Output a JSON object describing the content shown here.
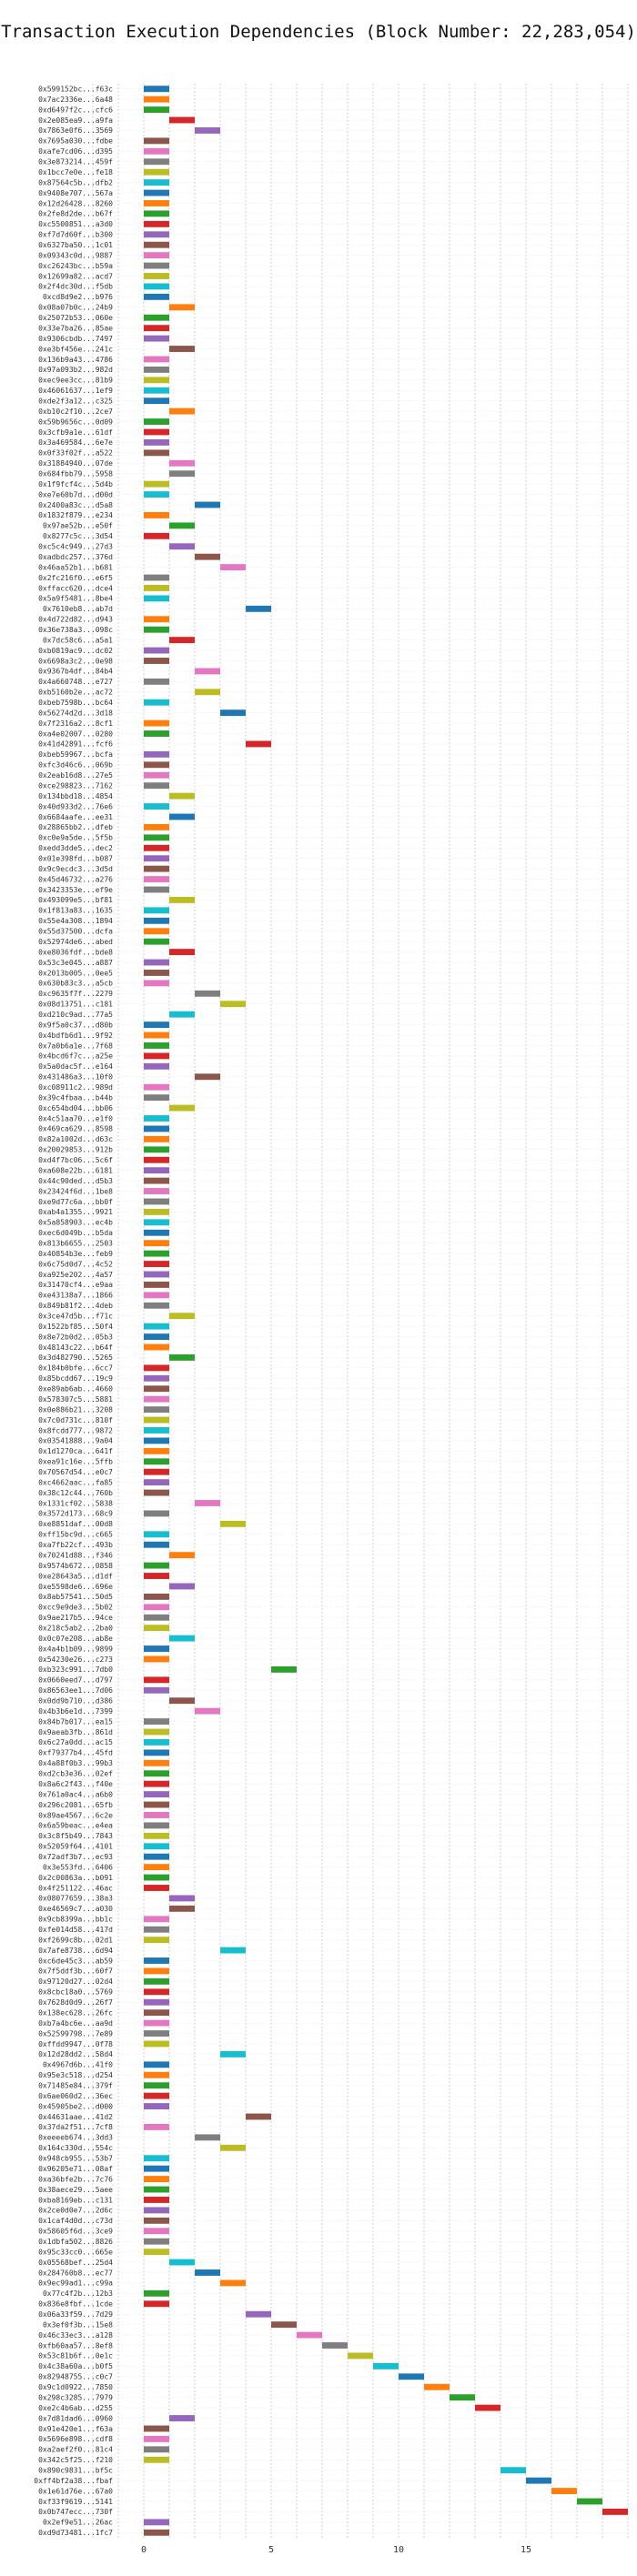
{
  "chart_data": {
    "type": "bar",
    "orientation": "horizontal",
    "title": "Transaction Execution Dependencies (Block Number: 22,283,054)",
    "xlabel": "",
    "ylabel": "",
    "xlim": [
      -2,
      20
    ],
    "xticks": [
      0,
      5,
      10,
      15,
      20
    ],
    "grid": "vertical dotted",
    "palette": [
      "#1f77b4",
      "#ff7f0e",
      "#2ca02c",
      "#d62728",
      "#9467bd",
      "#8c564b",
      "#e377c2",
      "#7f7f7f",
      "#bcbd22",
      "#17becf"
    ],
    "bars": [
      [
        "0x599152bc...f63c",
        0
      ],
      [
        "0x7ac2336e...6a48",
        0
      ],
      [
        "0xd6497f2c...cfc6",
        0
      ],
      [
        "0x2e085ea9...a9fa",
        1
      ],
      [
        "0x7863e0f6...3569",
        2
      ],
      [
        "0x7695a030...fdbe",
        0
      ],
      [
        "0xafe7cd06...d395",
        0
      ],
      [
        "0x3e873214...459f",
        0
      ],
      [
        "0x1bcc7e0e...fe18",
        0
      ],
      [
        "0x87564c5b...dfb2",
        0
      ],
      [
        "0x9408e707...567a",
        0
      ],
      [
        "0x12d26428...8260",
        0
      ],
      [
        "0x2fe8d2de...b67f",
        0
      ],
      [
        "0xc5500851...a3d0",
        0
      ],
      [
        "0xf7d7d60f...b300",
        0
      ],
      [
        "0x6327ba50...1c01",
        0
      ],
      [
        "0x09343c0d...9887",
        0
      ],
      [
        "0xc26243bc...b59a",
        0
      ],
      [
        "0x12699a82...acd7",
        0
      ],
      [
        "0x2f4dc30d...f5db",
        0
      ],
      [
        "0xcd8d9e2...b976",
        0
      ],
      [
        "0x08a07b0c...24b9",
        1
      ],
      [
        "0x25072b53...060e",
        0
      ],
      [
        "0x33e7ba26...85ae",
        0
      ],
      [
        "0x9306cbdb...7497",
        0
      ],
      [
        "0xe3bf456e...241c",
        1
      ],
      [
        "0x136b9a43...4786",
        0
      ],
      [
        "0x97a093b2...982d",
        0
      ],
      [
        "0xec9ee3cc...81b9",
        0
      ],
      [
        "0x46061637...1ef9",
        0
      ],
      [
        "0xde2f3a12...c325",
        0
      ],
      [
        "0xb10c2f10...2ce7",
        1
      ],
      [
        "0x59b9656c...0d09",
        0
      ],
      [
        "0x3cfb9a1e...61df",
        0
      ],
      [
        "0x3a469584...6e7e",
        0
      ],
      [
        "0x0f33f02f...a522",
        0
      ],
      [
        "0x31884940...07de",
        1
      ],
      [
        "0x684fbb79...5958",
        1
      ],
      [
        "0x1f9fcf4c...5d4b",
        0
      ],
      [
        "0xe7e60b7d...d00d",
        0
      ],
      [
        "0x2400a83c...d5a8",
        2
      ],
      [
        "0x1832f879...e234",
        0
      ],
      [
        "0x97ae52b...e50f",
        1
      ],
      [
        "0x8277c5c...3d54",
        0
      ],
      [
        "0xc5c4c949...27d3",
        1
      ],
      [
        "0xadbdc257...376d",
        2
      ],
      [
        "0x46aa52b1...b681",
        3
      ],
      [
        "0x2fc216f0...e6f5",
        0
      ],
      [
        "0xffacc620...dce4",
        0
      ],
      [
        "0x5a9f5481...8be4",
        0
      ],
      [
        "0x7610eb8...ab7d",
        4
      ],
      [
        "0x4d722d82...d943",
        0
      ],
      [
        "0x36e738a3...098c",
        0
      ],
      [
        "0x7dc58c6...a5a1",
        1
      ],
      [
        "0xb0819ac9...dc02",
        0
      ],
      [
        "0x6698a3c2...0e98",
        0
      ],
      [
        "0x9367b4df...84b4",
        2
      ],
      [
        "0x4a660748...e727",
        0
      ],
      [
        "0xb5160b2e...ac72",
        2
      ],
      [
        "0xbeb7598b...bc64",
        0
      ],
      [
        "0x56274d2d...3d18",
        3
      ],
      [
        "0x7f2316a2...8cf1",
        0
      ],
      [
        "0xa4e02007...0280",
        0
      ],
      [
        "0x41d42891...fcf6",
        4
      ],
      [
        "0xbeb59967...bcfa",
        0
      ],
      [
        "0xfc3d46c6...069b",
        0
      ],
      [
        "0x2eab16d8...27e5",
        0
      ],
      [
        "0xce298823...7162",
        0
      ],
      [
        "0x134bbd18...4854",
        1
      ],
      [
        "0x40d933d2...76e6",
        0
      ],
      [
        "0x6684aafe...ee31",
        1
      ],
      [
        "0x28865bb2...dfeb",
        0
      ],
      [
        "0xc0e9a5de...5f5b",
        0
      ],
      [
        "0xedd3dde5...dec2",
        0
      ],
      [
        "0x01e398fd...b087",
        0
      ],
      [
        "0x9c9ecdc3...3d5d",
        0
      ],
      [
        "0x45d46732...a276",
        0
      ],
      [
        "0x3423353e...ef9e",
        0
      ],
      [
        "0x493099e5...bf81",
        1
      ],
      [
        "0x1f813a83...1635",
        0
      ],
      [
        "0x55e4a308...1894",
        0
      ],
      [
        "0x55d37500...dcfa",
        0
      ],
      [
        "0x52974de6...abed",
        0
      ],
      [
        "0xe8036fdf...bde8",
        1
      ],
      [
        "0x53c3e045...a887",
        0
      ],
      [
        "0x2013b005...0ee5",
        0
      ],
      [
        "0x630b83c3...a5cb",
        0
      ],
      [
        "0xc9635f7f...2279",
        2
      ],
      [
        "0x08d13751...c181",
        3
      ],
      [
        "0xd210c9ad...77a5",
        1
      ],
      [
        "0x9f5a0c37...d80b",
        0
      ],
      [
        "0x4bdfb6d1...9f92",
        0
      ],
      [
        "0x7a0b6a1e...7f68",
        0
      ],
      [
        "0x4bcd6f7c...a25e",
        0
      ],
      [
        "0x5a0dac5f...e164",
        0
      ],
      [
        "0x431486a3...10f0",
        2
      ],
      [
        "0xc08911c2...989d",
        0
      ],
      [
        "0x39c4fbaa...b44b",
        0
      ],
      [
        "0xc654bd04...bb06",
        1
      ],
      [
        "0x4c51aa70...e1f0",
        0
      ],
      [
        "0x469ca629...8598",
        0
      ],
      [
        "0x82a1002d...d63c",
        0
      ],
      [
        "0x20029853...912b",
        0
      ],
      [
        "0xd4f7bc06...5c6f",
        0
      ],
      [
        "0xa608e22b...6181",
        0
      ],
      [
        "0x44c90ded...d5b3",
        0
      ],
      [
        "0x23424f6d...1be8",
        0
      ],
      [
        "0xe9d77c6a...bb0f",
        0
      ],
      [
        "0xab4a1355...9921",
        0
      ],
      [
        "0x5a858903...ec4b",
        0
      ],
      [
        "0xec6d049b...b5da",
        0
      ],
      [
        "0x813b6655...2503",
        0
      ],
      [
        "0x40854b3e...feb9",
        0
      ],
      [
        "0x6c75d0d7...4c52",
        0
      ],
      [
        "0xa925e202...4a57",
        0
      ],
      [
        "0x31470cf4...e9aa",
        0
      ],
      [
        "0xe43138a7...1866",
        0
      ],
      [
        "0x849b81f2...4deb",
        0
      ],
      [
        "0x3ce47d5b...f71c",
        1
      ],
      [
        "0x1522bf85...50f4",
        0
      ],
      [
        "0x8e72b0d2...05b3",
        0
      ],
      [
        "0x48143c22...b64f",
        0
      ],
      [
        "0x3d482790...5265",
        1
      ],
      [
        "0x184b0bfe...6cc7",
        0
      ],
      [
        "0x85bcdd67...19c9",
        0
      ],
      [
        "0xe89ab6ab...4660",
        0
      ],
      [
        "0x578307c5...5881",
        0
      ],
      [
        "0x0e886b21...3208",
        0
      ],
      [
        "0x7c0d731c...810f",
        0
      ],
      [
        "0x8fcdd777...9872",
        0
      ],
      [
        "0x03541888...9a04",
        0
      ],
      [
        "0x1d1270ca...641f",
        0
      ],
      [
        "0xea91c16e...5ffb",
        0
      ],
      [
        "0x70567d54...e0c7",
        0
      ],
      [
        "0xc4662aac...fa85",
        0
      ],
      [
        "0x38c12c44...760b",
        0
      ],
      [
        "0x1331cf02...5838",
        2
      ],
      [
        "0x3572d173...68c9",
        0
      ],
      [
        "0xe8851daf...00d8",
        3
      ],
      [
        "0xff15bc9d...c665",
        0
      ],
      [
        "0xa7fb22cf...493b",
        0
      ],
      [
        "0x70241d88...f346",
        1
      ],
      [
        "0x9574b672...0858",
        0
      ],
      [
        "0xe28643a5...d1df",
        0
      ],
      [
        "0xe5598de6...696e",
        1
      ],
      [
        "0x8ab57541...50d5",
        0
      ],
      [
        "0xcc9e9de3...5b02",
        0
      ],
      [
        "0x9ae217b5...94ce",
        0
      ],
      [
        "0x218c5ab2...2ba0",
        0
      ],
      [
        "0x0c07e208...ab8e",
        1
      ],
      [
        "0x4a4b1b09...9899",
        0
      ],
      [
        "0x54230e26...c273",
        0
      ],
      [
        "0xb323c991...7db0",
        5
      ],
      [
        "0x0660eed7...d797",
        0
      ],
      [
        "0x86563ee1...7d06",
        0
      ],
      [
        "0x0dd9b710...d386",
        1
      ],
      [
        "0x4b3b6e1d...7399",
        2
      ],
      [
        "0x84b7b017...ea15",
        0
      ],
      [
        "0x9aeab3fb...861d",
        0
      ],
      [
        "0x6c27a0dd...ac15",
        0
      ],
      [
        "0xf79377b4...45fd",
        0
      ],
      [
        "0x4a88f0b3...99b3",
        0
      ],
      [
        "0xd2cb3e36...02ef",
        0
      ],
      [
        "0x8a6c2f43...f40e",
        0
      ],
      [
        "0x761a0ac4...a6b0",
        0
      ],
      [
        "0x296c2081...65fb",
        0
      ],
      [
        "0x89ae4567...6c2e",
        0
      ],
      [
        "0x6a59beac...e4ea",
        0
      ],
      [
        "0x3c8f5b49...7843",
        0
      ],
      [
        "0x52059f64...4101",
        0
      ],
      [
        "0x72adf3b7...ec93",
        0
      ],
      [
        "0x3e553fd...6406",
        0
      ],
      [
        "0x2c00863a...b091",
        0
      ],
      [
        "0x4f251122...46ac",
        0
      ],
      [
        "0x08077659...38a3",
        1
      ],
      [
        "0xe46569c7...a030",
        1
      ],
      [
        "0x9cb8399a...bb1c",
        0
      ],
      [
        "0xfe014d58...417d",
        0
      ],
      [
        "0xf2699c8b...02d1",
        0
      ],
      [
        "0x7afe8738...6d94",
        3
      ],
      [
        "0xc6de45c3...ab59",
        0
      ],
      [
        "0x7f5ddf3b...60f7",
        0
      ],
      [
        "0x97120d27...02d4",
        0
      ],
      [
        "0x8cbc18a0...5769",
        0
      ],
      [
        "0x7628d0d9...26f7",
        0
      ],
      [
        "0x138ec628...26fc",
        0
      ],
      [
        "0xb7a4bc6e...aa9d",
        0
      ],
      [
        "0x52599798...7e89",
        0
      ],
      [
        "0xffdd9947...0f78",
        0
      ],
      [
        "0x12d28dd2...58d4",
        3
      ],
      [
        "0x4967d6b...41f0",
        0
      ],
      [
        "0x95e3c518...d254",
        0
      ],
      [
        "0x71485e84...379f",
        0
      ],
      [
        "0x6ae060d2...36ec",
        0
      ],
      [
        "0x45905be2...d000",
        0
      ],
      [
        "0x44631aae...41d2",
        4
      ],
      [
        "0x37da2f51...7cf8",
        0
      ],
      [
        "0xeeeeb674...3dd3",
        2
      ],
      [
        "0x164c330d...554c",
        3
      ],
      [
        "0x948cb955...53b7",
        0
      ],
      [
        "0x96205e71...08af",
        0
      ],
      [
        "0xa36bfe2b...7c76",
        0
      ],
      [
        "0x38aece29...5aee",
        0
      ],
      [
        "0xba8169eb...c131",
        0
      ],
      [
        "0x2ce0d0e7...2d6c",
        0
      ],
      [
        "0x1caf4d0d...c73d",
        0
      ],
      [
        "0x58605f6d...3ce9",
        0
      ],
      [
        "0x1dbfa502...8826",
        0
      ],
      [
        "0x95c33cc0...665e",
        0
      ],
      [
        "0x05568bef...25d4",
        1
      ],
      [
        "0x284760b8...ec77",
        2
      ],
      [
        "0x9ec99ad1...c99a",
        3
      ],
      [
        "0x77c4f2b...12b3",
        0
      ],
      [
        "0x836e8fbf...1cde",
        0
      ],
      [
        "0x06a33f59...7d29",
        4
      ],
      [
        "0x3ef0f3b...15e8",
        5
      ],
      [
        "0x46c33ec3...a128",
        6
      ],
      [
        "0xfb60aa57...8ef8",
        7
      ],
      [
        "0x53c81b6f...0e1c",
        8
      ],
      [
        "0x4c38a60a...b0f5",
        9
      ],
      [
        "0x82948755...c0c7",
        10
      ],
      [
        "0x9c1d0922...7850",
        11
      ],
      [
        "0x298c3285...7979",
        12
      ],
      [
        "0xe2c4b6ab...d255",
        13
      ],
      [
        "0x7d81dad6...0960",
        1
      ],
      [
        "0x91e420e1...f63a",
        0
      ],
      [
        "0x5696e898...cdf8",
        0
      ],
      [
        "0xa2aef2f0...81c4",
        0
      ],
      [
        "0x342c5f25...f210",
        0
      ],
      [
        "0x890c9831...bf5c",
        14
      ],
      [
        "0xff4bf2a38...fbaf",
        15
      ],
      [
        "0x1e61d76e...67a0",
        16
      ],
      [
        "0xf33f9619...5141",
        17
      ],
      [
        "0x0b747ecc...730f",
        18
      ],
      [
        "0x2ef9e51...26ac",
        0
      ],
      [
        "0xd9d73481...1fc7",
        0
      ]
    ]
  }
}
